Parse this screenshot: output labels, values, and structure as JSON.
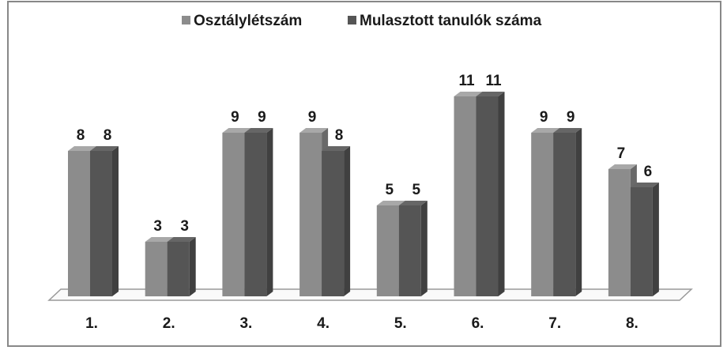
{
  "chart_data": {
    "type": "bar3d",
    "categories": [
      "1.",
      "2.",
      "3.",
      "4.",
      "5.",
      "6.",
      "7.",
      "8."
    ],
    "series": [
      {
        "name": "Osztálylétszám",
        "color": "#8c8c8c",
        "values": [
          8,
          3,
          9,
          9,
          5,
          11,
          9,
          7
        ]
      },
      {
        "name": "Mulasztott tanulók száma",
        "color": "#555555",
        "values": [
          8,
          3,
          9,
          8,
          5,
          11,
          9,
          6
        ]
      }
    ],
    "legend": "top"
  }
}
